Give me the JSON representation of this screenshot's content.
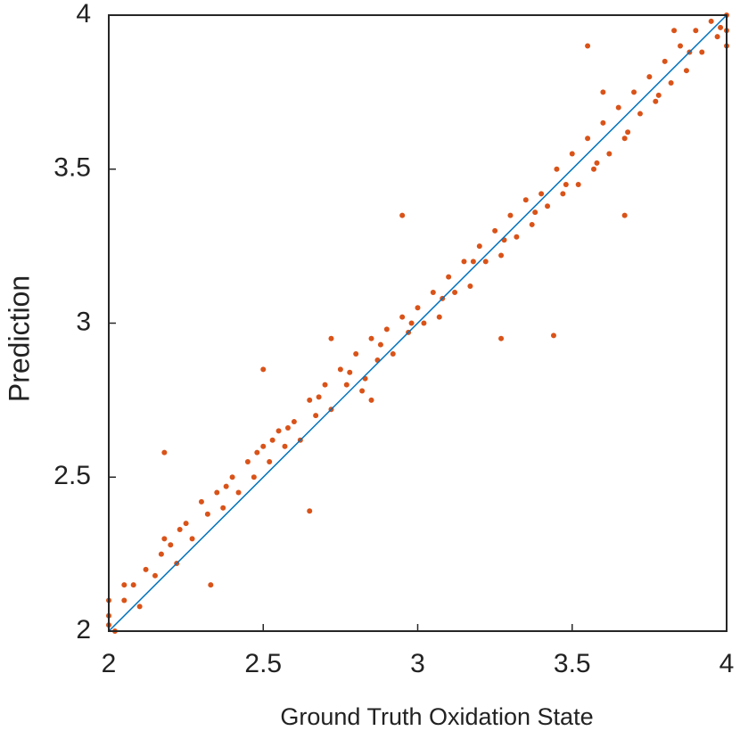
{
  "chart_data": {
    "type": "scatter",
    "x_label": "Ground Truth Oxidation State",
    "y_label": "Prediction",
    "xlim": [
      2,
      4
    ],
    "ylim": [
      2,
      4
    ],
    "xticks": [
      2,
      2.5,
      3,
      3.5,
      4
    ],
    "yticks": [
      2,
      2.5,
      3,
      3.5,
      4
    ],
    "grid": false,
    "points": {
      "color": "#d95319",
      "x": [
        2.0,
        2.0,
        2.0,
        2.02,
        2.05,
        2.08,
        2.1,
        2.12,
        2.15,
        2.17,
        2.18,
        2.2,
        2.22,
        2.25,
        2.27,
        2.3,
        2.32,
        2.35,
        2.37,
        2.4,
        2.42,
        2.45,
        2.47,
        2.5,
        2.52,
        2.55,
        2.57,
        2.6,
        2.62,
        2.65,
        2.67,
        2.7,
        2.72,
        2.75,
        2.77,
        2.8,
        2.82,
        2.85,
        2.87,
        2.9,
        2.92,
        2.95,
        2.97,
        3.0,
        3.02,
        3.05,
        3.07,
        3.1,
        3.12,
        3.15,
        3.17,
        3.2,
        3.22,
        3.25,
        3.27,
        3.3,
        3.32,
        3.35,
        3.37,
        3.4,
        3.42,
        3.45,
        3.47,
        3.5,
        3.52,
        3.55,
        3.57,
        3.6,
        3.62,
        3.65,
        3.67,
        3.7,
        3.72,
        3.75,
        3.77,
        3.8,
        3.82,
        3.85,
        3.87,
        3.9,
        3.92,
        3.95,
        3.97,
        4.0,
        4.0,
        4.0,
        2.18,
        2.65,
        2.5,
        2.95,
        3.44,
        3.27,
        3.67,
        2.33,
        2.72,
        2.85,
        3.55,
        3.6,
        2.05,
        3.83,
        2.23,
        2.38,
        2.48,
        2.58,
        2.68,
        2.78,
        2.88,
        2.98,
        3.08,
        3.18,
        3.28,
        3.38,
        3.48,
        3.58,
        3.68,
        3.78,
        3.88,
        3.98,
        2.53,
        2.83
      ],
      "y": [
        2.02,
        2.1,
        2.05,
        2.0,
        2.1,
        2.15,
        2.08,
        2.2,
        2.18,
        2.25,
        2.3,
        2.28,
        2.22,
        2.35,
        2.3,
        2.42,
        2.38,
        2.45,
        2.4,
        2.5,
        2.45,
        2.55,
        2.5,
        2.6,
        2.55,
        2.65,
        2.6,
        2.68,
        2.62,
        2.75,
        2.7,
        2.8,
        2.72,
        2.85,
        2.8,
        2.9,
        2.78,
        2.95,
        2.88,
        2.98,
        2.9,
        3.02,
        2.97,
        3.05,
        3.0,
        3.1,
        3.02,
        3.15,
        3.1,
        3.2,
        3.12,
        3.25,
        3.2,
        3.3,
        3.22,
        3.35,
        3.28,
        3.4,
        3.32,
        3.42,
        3.38,
        3.5,
        3.42,
        3.55,
        3.45,
        3.6,
        3.5,
        3.65,
        3.55,
        3.7,
        3.6,
        3.75,
        3.68,
        3.8,
        3.72,
        3.85,
        3.78,
        3.9,
        3.82,
        3.95,
        3.88,
        3.98,
        3.93,
        4.0,
        3.9,
        3.95,
        2.58,
        2.39,
        2.85,
        3.35,
        2.96,
        2.95,
        3.35,
        2.15,
        2.95,
        2.75,
        3.9,
        3.75,
        2.15,
        3.95,
        2.33,
        2.47,
        2.58,
        2.66,
        2.76,
        2.84,
        2.93,
        3.0,
        3.08,
        3.2,
        3.27,
        3.36,
        3.45,
        3.52,
        3.62,
        3.74,
        3.88,
        3.96,
        2.62,
        2.82
      ]
    },
    "line": {
      "color": "#0072bd",
      "x": [
        2,
        4
      ],
      "y": [
        2,
        4
      ]
    }
  }
}
